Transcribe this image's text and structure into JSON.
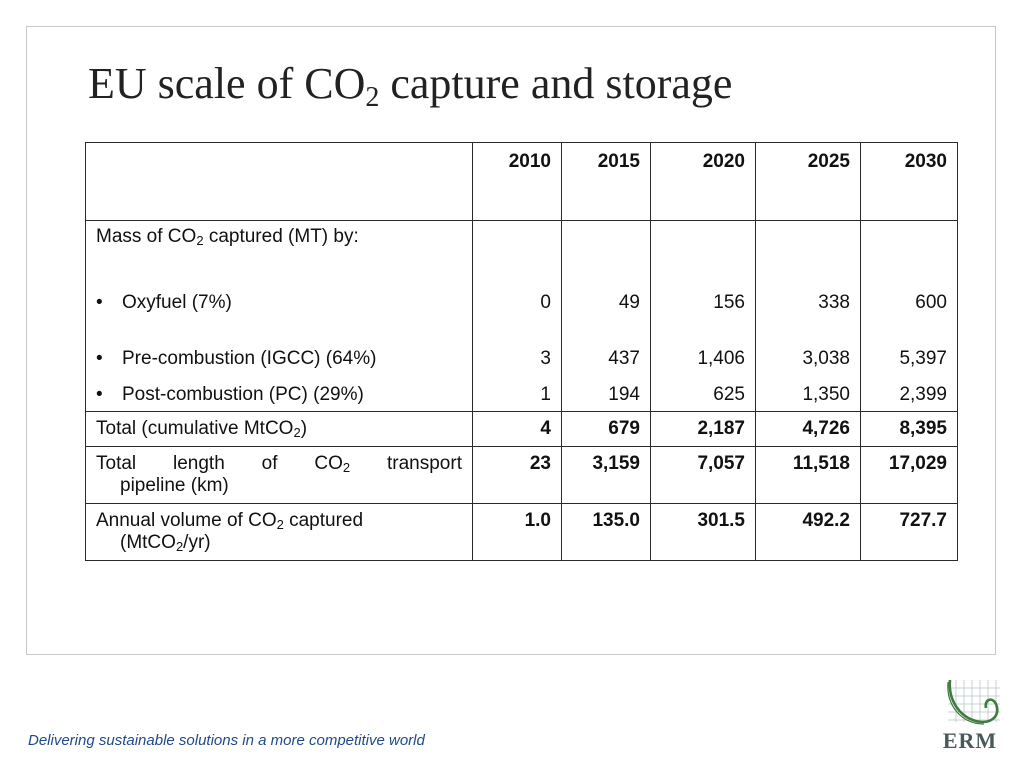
{
  "title": {
    "pre": "EU scale of CO",
    "sub": "2",
    "post": " capture and storage"
  },
  "table": {
    "years": [
      "2010",
      "2015",
      "2020",
      "2025",
      "2030"
    ],
    "mass_heading": {
      "pre": "Mass of CO",
      "sub": "2",
      "post": " captured (MT) by:"
    },
    "rows": [
      {
        "bullet": "•",
        "label": "Oxyfuel (7%)",
        "values": [
          "0",
          "49",
          "156",
          "338",
          "600"
        ]
      },
      {
        "bullet": "•",
        "label": "Pre-combustion (IGCC) (64%)",
        "values": [
          "3",
          "437",
          "1,406",
          "3,038",
          "5,397"
        ]
      },
      {
        "bullet": "•",
        "label": "Post-combustion (PC) (29%)",
        "values": [
          "1",
          "194",
          "625",
          "1,350",
          "2,399"
        ]
      }
    ],
    "total": {
      "pre": "Total (cumulative MtCO",
      "sub": "2",
      "post": ")",
      "values": [
        "4",
        "679",
        "2,187",
        "4,726",
        "8,395"
      ]
    },
    "pipeline": {
      "line1_pre": "Total length of CO",
      "line1_sub": "2",
      "line1_post": " transport",
      "line2": "pipeline (km)",
      "values": [
        "23",
        "3,159",
        "7,057",
        "11,518",
        "17,029"
      ]
    },
    "annual": {
      "line1_pre": "Annual volume of CO",
      "line1_sub": "2",
      "line1_post": " captured",
      "line2_pre": "(MtCO",
      "line2_sub": "2",
      "line2_post": "/yr)",
      "values": [
        "1.0",
        "135.0",
        "301.5",
        "492.2",
        "727.7"
      ]
    }
  },
  "footer": {
    "tagline": "Delivering sustainable solutions in a more competitive world"
  },
  "logo": {
    "text": "ERM",
    "icon": "erm-logo-icon",
    "color": "#4a7a4a"
  }
}
